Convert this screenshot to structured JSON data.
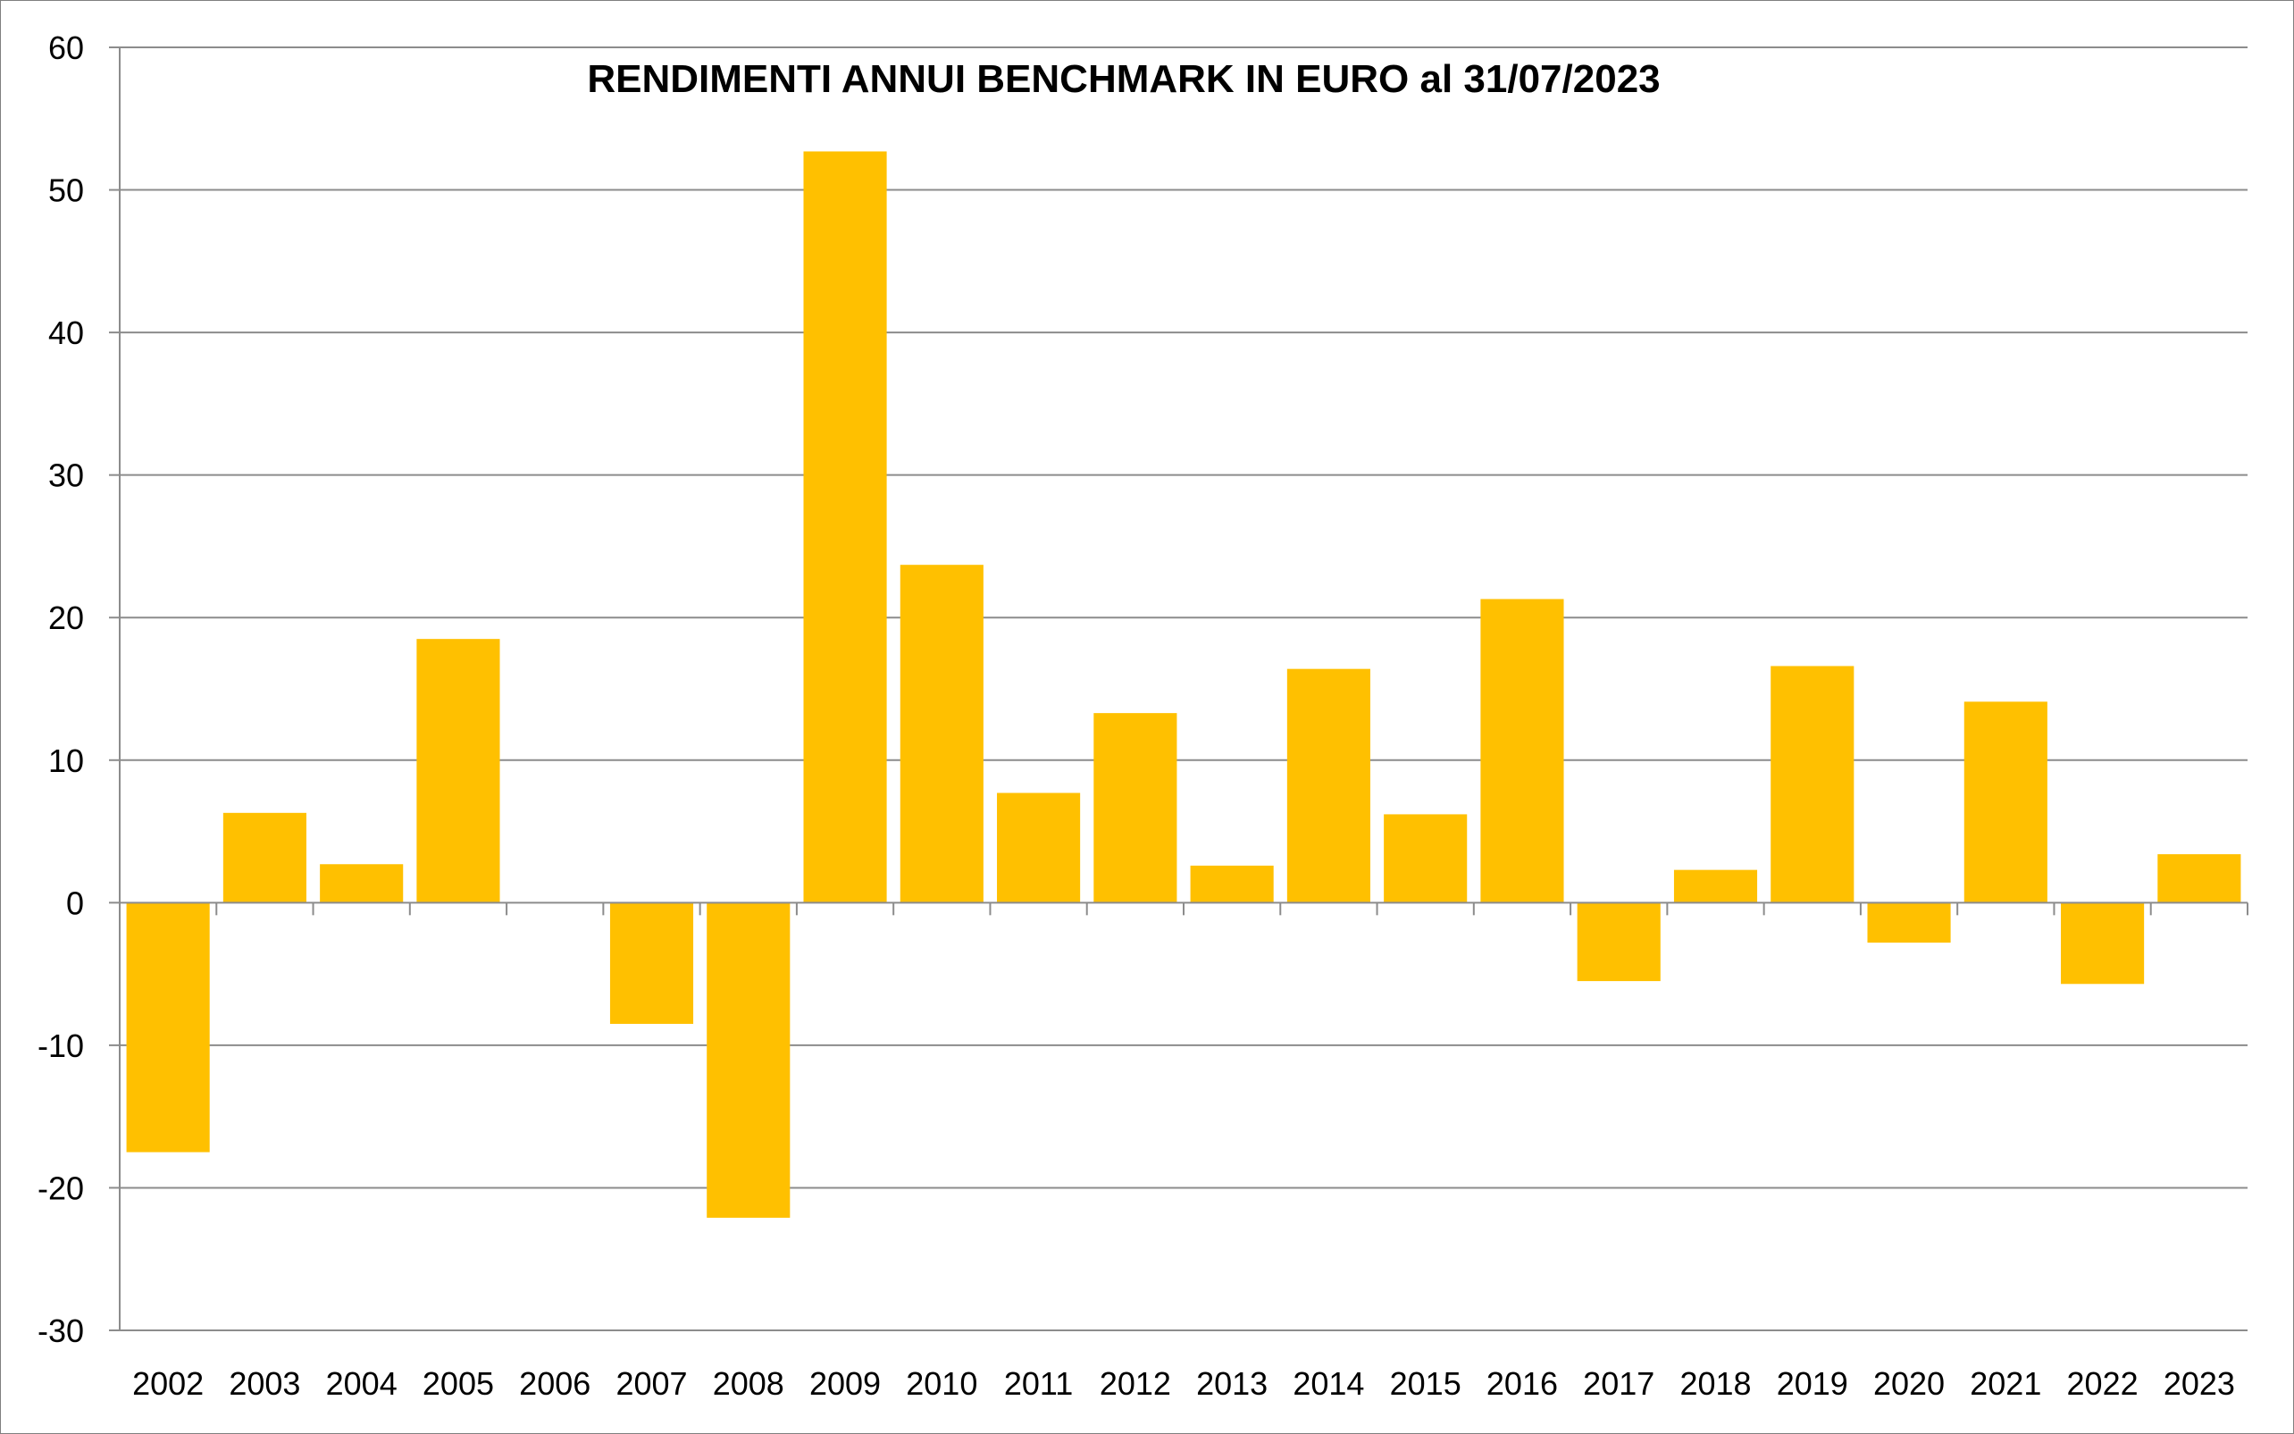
{
  "chart_data": {
    "type": "bar",
    "title": "RENDIMENTI ANNUI BENCHMARK IN EURO al 31/07/2023",
    "xlabel": "",
    "ylabel": "",
    "ylim": [
      -30,
      60
    ],
    "yticks": [
      60,
      50,
      40,
      30,
      20,
      10,
      0,
      -10,
      -20,
      -30
    ],
    "grid": true,
    "legend": "none",
    "categories": [
      "2002",
      "2003",
      "2004",
      "2005",
      "2006",
      "2007",
      "2008",
      "2009",
      "2010",
      "2011",
      "2012",
      "2013",
      "2014",
      "2015",
      "2016",
      "2017",
      "2018",
      "2019",
      "2020",
      "2021",
      "2022",
      "2023"
    ],
    "series": [
      {
        "values": [
          -17.5,
          6.3,
          2.7,
          18.5,
          0,
          -8.5,
          -22.1,
          52.7,
          23.7,
          7.7,
          13.3,
          2.6,
          16.4,
          6.2,
          21.3,
          -5.5,
          2.3,
          16.6,
          -2.8,
          14.1,
          -5.7,
          3.4
        ]
      }
    ],
    "colors": {
      "bar": "#FFC000",
      "grid": "#8c8c8c",
      "axis": "#8c8c8c",
      "frame": "#7f7f7f"
    }
  }
}
